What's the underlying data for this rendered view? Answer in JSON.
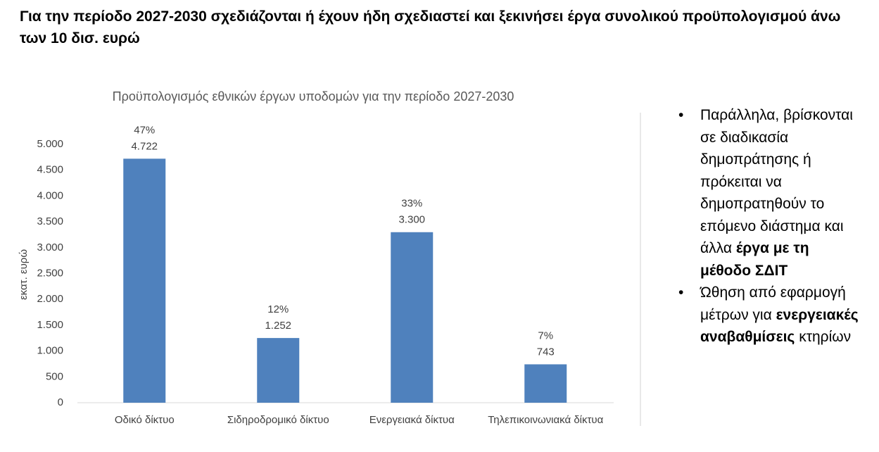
{
  "heading": "Για την περίοδο 2027-2030 σχεδιάζονται ή έχουν ήδη σχεδιαστεί και ξεκινήσει έργα συνολικού προϋπολογισμού άνω των 10 δισ. ευρώ",
  "chart_data": {
    "type": "bar",
    "title": "Προϋπολογισμός εθνικών έργων υποδομών για την περίοδο 2027-2030",
    "y_label": "εκατ. ευρώ",
    "categories": [
      "Οδικό δίκτυο",
      "Σιδηροδρομικό δίκτυο",
      "Ενεργειακά δίκτυα",
      "Τηλεπικοινωνιακά δίκτυα"
    ],
    "values": [
      4722,
      1252,
      3300,
      743
    ],
    "value_labels": [
      "4.722",
      "1.252",
      "3.300",
      "743"
    ],
    "share_labels": [
      "47%",
      "12%",
      "33%",
      "7%"
    ],
    "color": "#4f81bd",
    "ylim": [
      0,
      5000
    ],
    "yticks": [
      0,
      500,
      {
        "value": 1000,
        "label": "1.000"
      },
      {
        "value": 1500,
        "label": "1.500"
      },
      {
        "value": 2000,
        "label": "2.000"
      },
      {
        "value": 2500,
        "label": "2.500"
      },
      {
        "value": 3000,
        "label": "3.000"
      },
      {
        "value": 3500,
        "label": "3.500"
      },
      {
        "value": 4000,
        "label": "4.000"
      },
      {
        "value": 4500,
        "label": "4.500"
      },
      {
        "value": 5000,
        "label": "5.000"
      }
    ],
    "grid": false
  },
  "bullets": [
    [
      {
        "text": "Παράλληλα, βρίσκονται σε διαδικασία δημοπράτησης ή πρόκειται να δημοπρατηθούν το επόμενο διάστημα και άλλα ",
        "bold": false
      },
      {
        "text": "έργα με τη μέθοδο ΣΔΙΤ",
        "bold": true
      }
    ],
    [
      {
        "text": "Ώθηση από εφαρμογή μέτρων για ",
        "bold": false
      },
      {
        "text": "ενεργειακές αναβαθμίσεις",
        "bold": true
      },
      {
        "text": " κτηρίων",
        "bold": false
      }
    ]
  ]
}
